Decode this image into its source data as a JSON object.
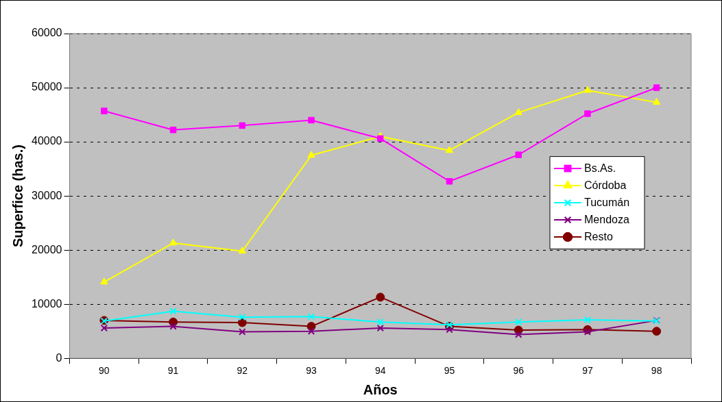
{
  "chart_data": {
    "type": "line",
    "xlabel": "Años",
    "ylabel": "Superfice (has.)",
    "categories": [
      "90",
      "91",
      "92",
      "93",
      "94",
      "95",
      "96",
      "97",
      "98"
    ],
    "ylim": [
      0,
      60000
    ],
    "yticks": [
      0,
      10000,
      20000,
      30000,
      40000,
      50000,
      60000
    ],
    "grid": "y",
    "legend": "right",
    "series": [
      {
        "name": "Bs.As.",
        "color": "#ff00ff",
        "marker": "square",
        "values": [
          45700,
          42200,
          43000,
          44000,
          40600,
          32700,
          37600,
          45200,
          50000
        ]
      },
      {
        "name": "Córdoba",
        "color": "#ffff00",
        "marker": "triangle",
        "values": [
          14100,
          21300,
          19800,
          37500,
          41000,
          38400,
          45400,
          49500,
          47300
        ]
      },
      {
        "name": "Tucumán",
        "color": "#00ffff",
        "marker": "cross",
        "values": [
          6900,
          8700,
          7600,
          7700,
          6700,
          6200,
          6700,
          7100,
          6900
        ]
      },
      {
        "name": "Mendoza",
        "color": "#800080",
        "marker": "cross",
        "values": [
          5600,
          5900,
          4900,
          5000,
          5600,
          5300,
          4400,
          4900,
          7000
        ]
      },
      {
        "name": "Resto",
        "color": "#800000",
        "marker": "circle",
        "values": [
          7000,
          6700,
          6600,
          5900,
          11300,
          5900,
          5200,
          5300,
          5000
        ]
      }
    ]
  }
}
